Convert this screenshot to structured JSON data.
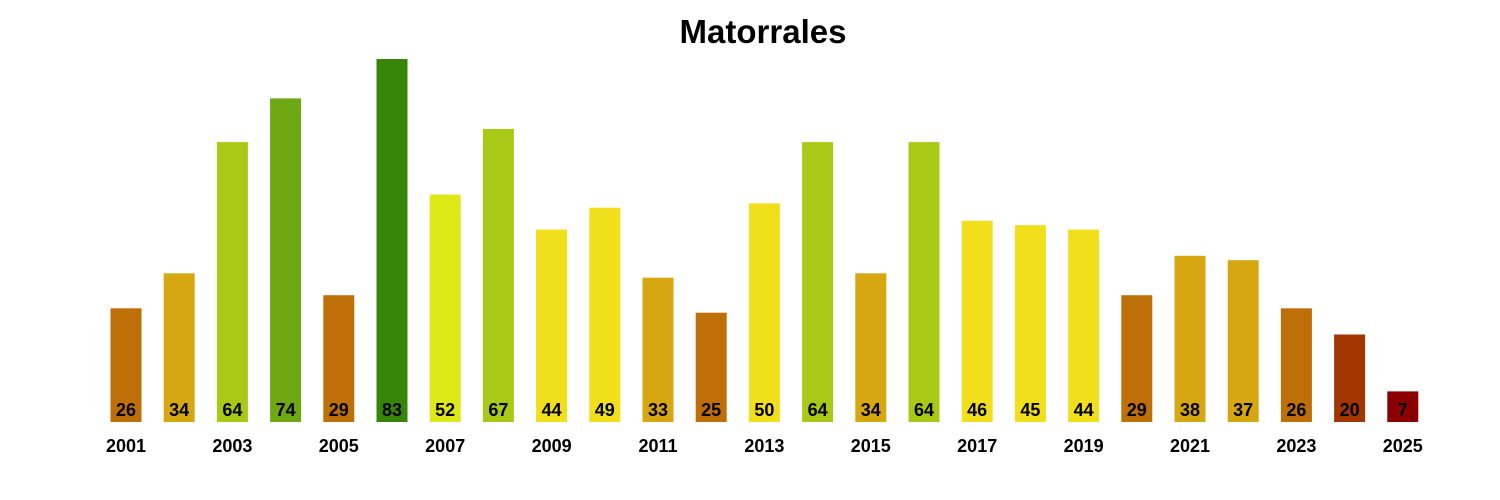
{
  "chart_data": {
    "type": "bar",
    "title": "Matorrales",
    "xlabel": "",
    "ylabel": "",
    "ylim": [
      0,
      83
    ],
    "grid": false,
    "legend": "none",
    "categories": [
      "2001",
      "2002",
      "2003",
      "2004",
      "2005",
      "2006",
      "2007",
      "2008",
      "2009",
      "2010",
      "2011",
      "2012",
      "2013",
      "2014",
      "2015",
      "2016",
      "2017",
      "2018",
      "2019",
      "2020",
      "2021",
      "2022",
      "2023",
      "2024",
      "2025"
    ],
    "tick_labels": [
      "2001",
      "",
      "2003",
      "",
      "2005",
      "",
      "2007",
      "",
      "2009",
      "",
      "2011",
      "",
      "2013",
      "",
      "2015",
      "",
      "2017",
      "",
      "2019",
      "",
      "2021",
      "",
      "2023",
      "",
      "2025"
    ],
    "values": [
      26,
      34,
      64,
      74,
      29,
      83,
      52,
      67,
      44,
      49,
      33,
      25,
      50,
      64,
      34,
      64,
      46,
      45,
      44,
      29,
      38,
      37,
      26,
      20,
      7
    ],
    "colors": [
      "#BF6F08",
      "#D6A710",
      "#A8CA16",
      "#6EA812",
      "#BF6F08",
      "#378508",
      "#DEE816",
      "#A8CA16",
      "#F0DF1A",
      "#F0DF1A",
      "#D6A710",
      "#BF6F08",
      "#F0DF1A",
      "#A8CA16",
      "#D6A710",
      "#A8CA16",
      "#F0DF1A",
      "#F0DF1A",
      "#F0DF1A",
      "#BF6F08",
      "#D6A710",
      "#D6A710",
      "#BF6F08",
      "#A33500",
      "#8B0000"
    ]
  }
}
